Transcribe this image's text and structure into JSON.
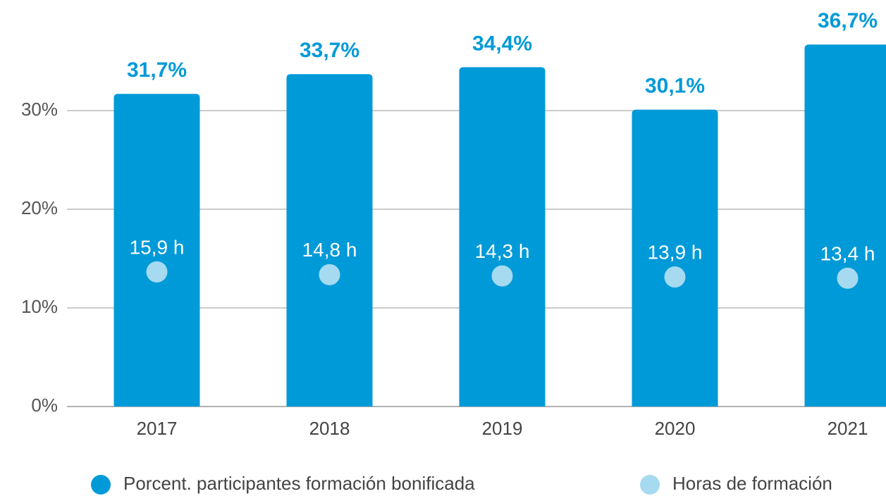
{
  "chart_data": {
    "type": "bar",
    "categories": [
      "2017",
      "2018",
      "2019",
      "2020",
      "2021"
    ],
    "series": [
      {
        "name": "Porcent. participantes formación bonificada",
        "color": "#009ad8",
        "values": [
          31.7,
          33.7,
          34.4,
          30.1,
          36.7
        ],
        "value_labels": [
          "31,7%",
          "33,7%",
          "34,4%",
          "30,1%",
          "36,7%"
        ]
      },
      {
        "name": "Horas de formación",
        "color": "#a6daf0",
        "axis": "y2",
        "values": [
          15.9,
          14.8,
          14.3,
          13.9,
          13.4
        ],
        "value_labels": [
          "15,9 h",
          "14,8 h",
          "14,3 h",
          "13,9 h",
          "13,4 h"
        ]
      }
    ],
    "ylim": [
      0,
      40
    ],
    "yticks": [
      {
        "value": 0,
        "label": "0%"
      },
      {
        "value": 10,
        "label": "10%"
      },
      {
        "value": 20,
        "label": "20%"
      },
      {
        "value": 30,
        "label": "30%"
      }
    ],
    "y2lim": [
      -37,
      118
    ],
    "grid": true
  }
}
